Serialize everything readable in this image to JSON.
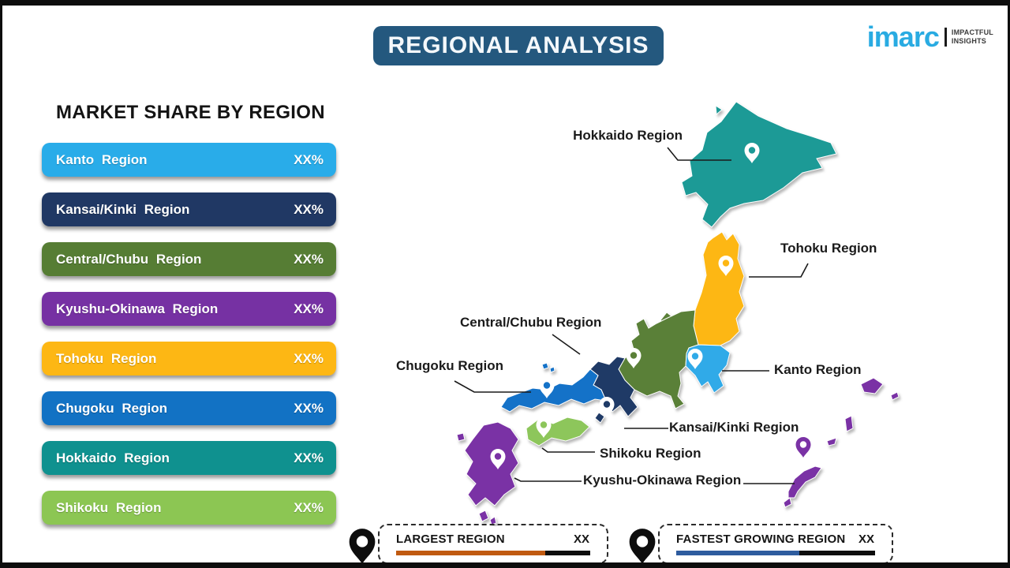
{
  "title": "REGIONAL ANALYSIS",
  "logo": {
    "brand": "imarc",
    "tagline_line1": "IMPACTFUL",
    "tagline_line2": "INSIGHTS",
    "brand_color": "#29ABE2"
  },
  "market_share": {
    "heading": "MARKET SHARE BY REGION",
    "items": [
      {
        "label": "Kanto Region",
        "value": "XX%",
        "color": "#29ACE9"
      },
      {
        "label": "Kansai/Kinki Region",
        "value": "XX%",
        "color": "#203864"
      },
      {
        "label": "Central/Chubu Region",
        "value": "XX%",
        "color": "#567D34"
      },
      {
        "label": "Kyushu-Okinawa Region",
        "value": "XX%",
        "color": "#7631A3"
      },
      {
        "label": "Tohoku Region",
        "value": "XX%",
        "color": "#FDB714"
      },
      {
        "label": "Chugoku Region",
        "value": "XX%",
        "color": "#1272C4"
      },
      {
        "label": "Hokkaido Region",
        "value": "XX%",
        "color": "#0F918F"
      },
      {
        "label": "Shikoku Region",
        "value": "XX%",
        "color": "#8CC653"
      }
    ]
  },
  "map": {
    "regions": [
      {
        "name": "Hokkaido Region",
        "color": "#1C9A96"
      },
      {
        "name": "Tohoku Region",
        "color": "#FDB714"
      },
      {
        "name": "Kanto Region",
        "color": "#30AAE8"
      },
      {
        "name": "Central/Chubu Region",
        "color": "#5A8038"
      },
      {
        "name": "Kansai/Kinki Region",
        "color": "#1F3A66"
      },
      {
        "name": "Chugoku Region",
        "color": "#1472C8"
      },
      {
        "name": "Shikoku Region",
        "color": "#8DC65B"
      },
      {
        "name": "Kyushu-Okinawa Region",
        "color": "#7A32A5"
      }
    ]
  },
  "legend": {
    "largest": {
      "label": "LARGEST REGION",
      "value": "XX",
      "bar_color": "#C05A11",
      "bar_width": "77%"
    },
    "fastest": {
      "label": "FASTEST GROWING REGION",
      "value": "XX",
      "bar_color": "#2E5C9E",
      "bar_width": "62%"
    }
  }
}
